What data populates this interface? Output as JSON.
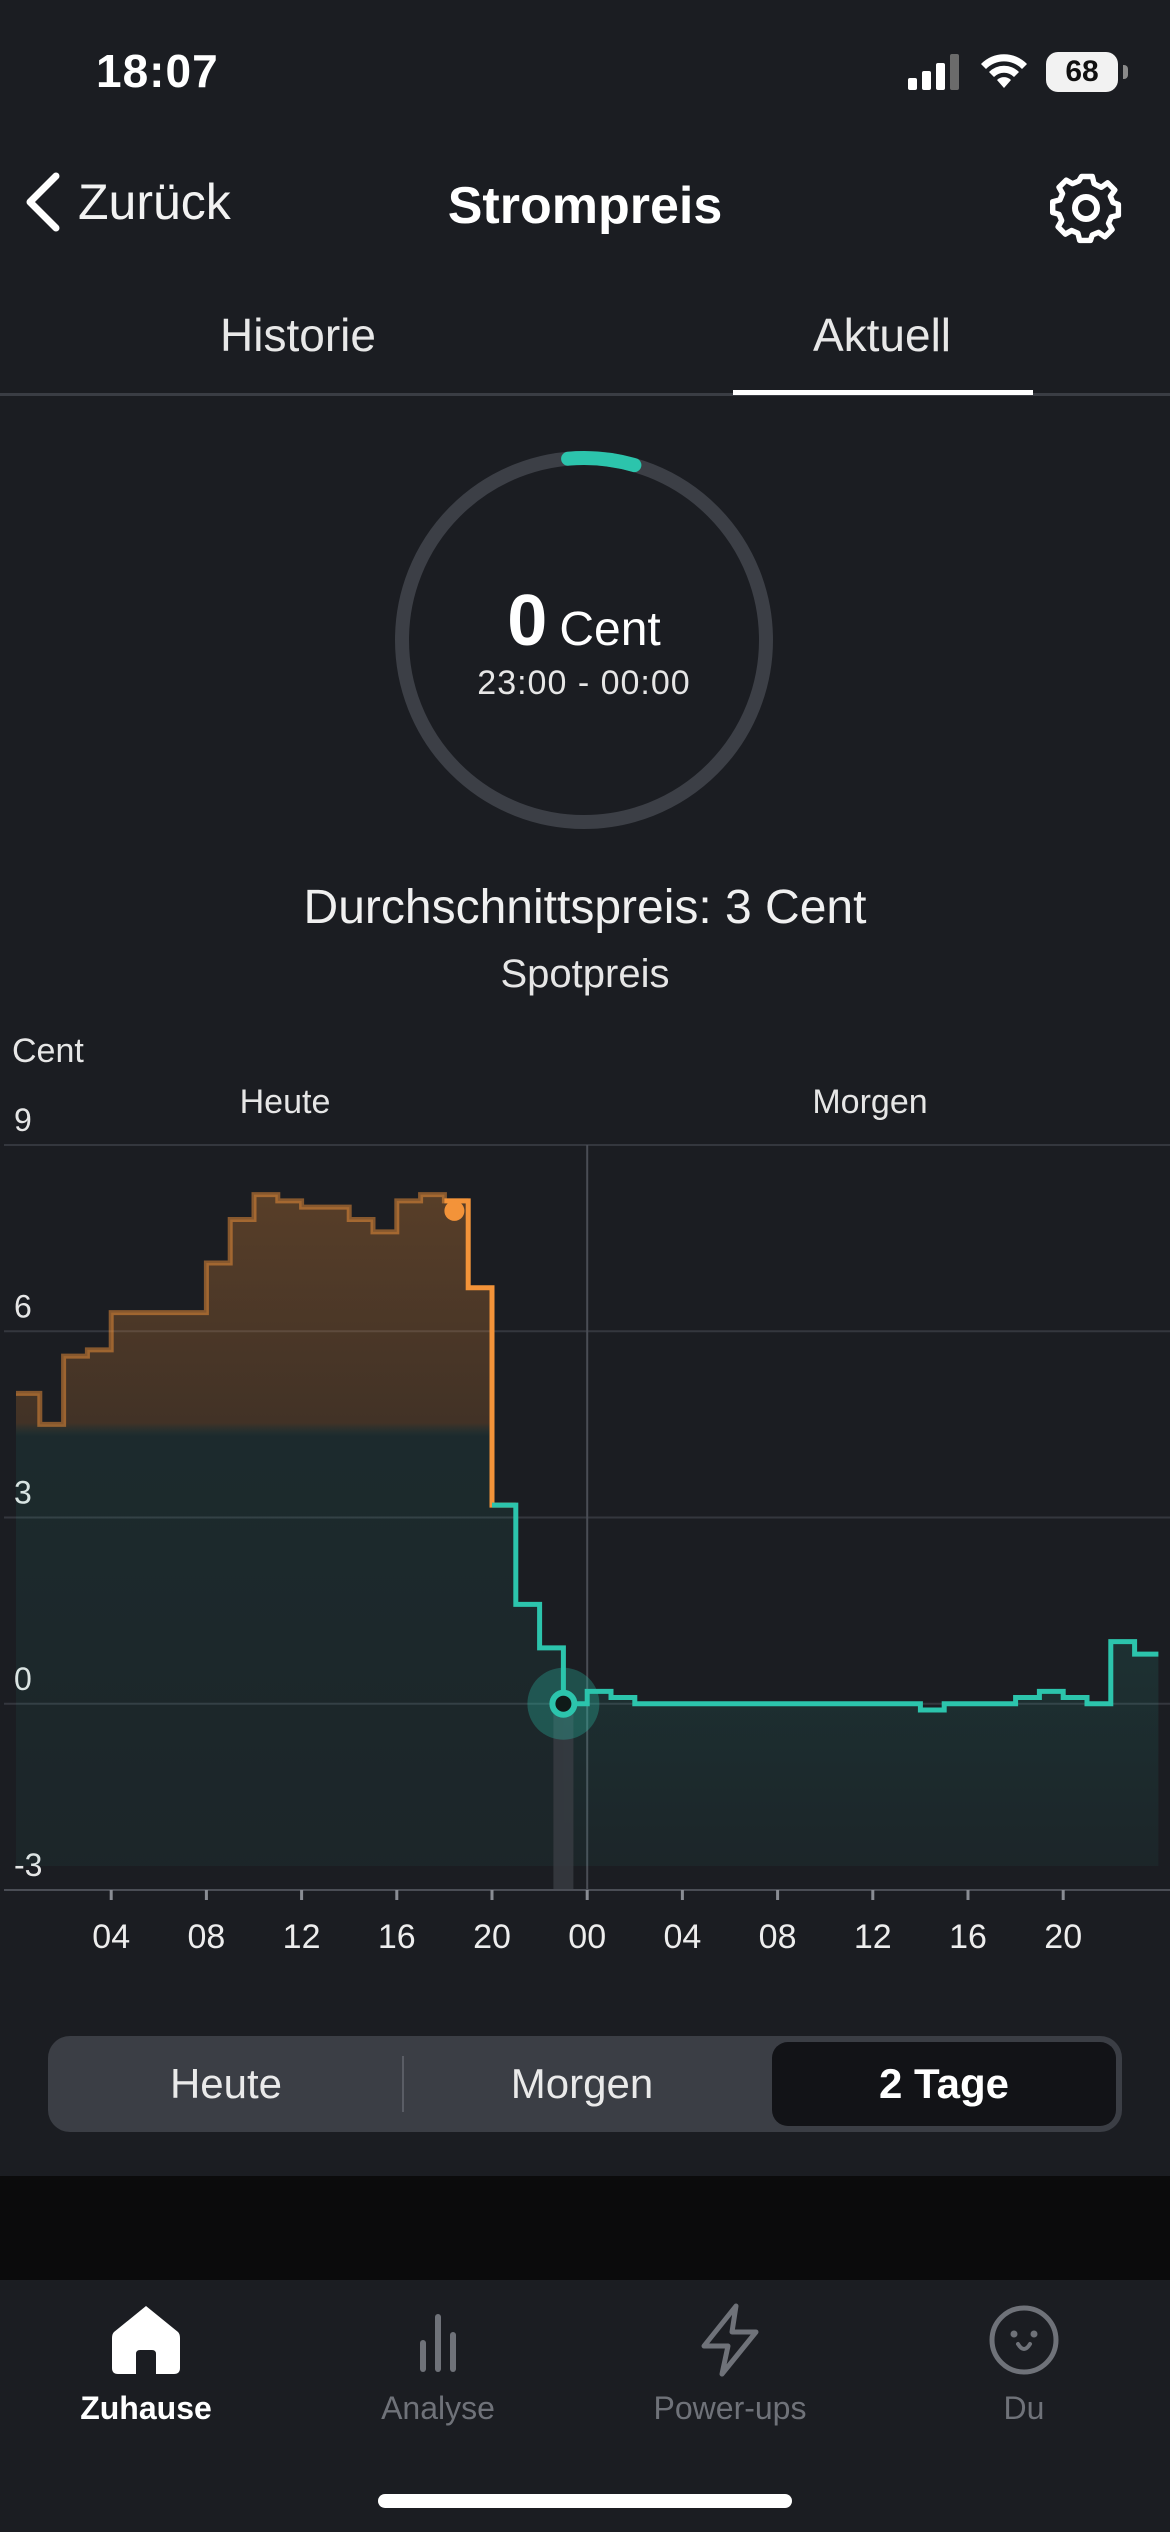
{
  "status_bar": {
    "time": "18:07",
    "battery": "68"
  },
  "nav": {
    "back_label": "Zurück",
    "title": "Strompreis"
  },
  "tabs": [
    {
      "label": "Historie"
    },
    {
      "label": "Aktuell",
      "active": true
    }
  ],
  "current": {
    "value": "0",
    "unit": "Cent",
    "range": "23:00 - 00:00"
  },
  "summary": {
    "average": "Durchschnittspreis: 3 Cent",
    "type": "Spotpreis"
  },
  "chart_data": {
    "type": "line",
    "ylabel": "Cent",
    "ylim": [
      -3,
      9
    ],
    "yticks": [
      9,
      6,
      3,
      0,
      -3
    ],
    "xticks": [
      "04",
      "08",
      "12",
      "16",
      "20",
      "00",
      "04",
      "08",
      "12",
      "16",
      "20"
    ],
    "groups": [
      "Heute",
      "Morgen"
    ],
    "grid": true,
    "current_index": 23,
    "past_color": "#f39339",
    "future_color": "#2cc4ac",
    "hours": [
      "00",
      "01",
      "02",
      "03",
      "04",
      "05",
      "06",
      "07",
      "08",
      "09",
      "10",
      "11",
      "12",
      "13",
      "14",
      "15",
      "16",
      "17",
      "18",
      "19",
      "20",
      "21",
      "22",
      "23",
      "00",
      "01",
      "02",
      "03",
      "04",
      "05",
      "06",
      "07",
      "08",
      "09",
      "10",
      "11",
      "12",
      "13",
      "14",
      "15",
      "16",
      "17",
      "18",
      "19",
      "20",
      "21",
      "22",
      "23"
    ],
    "values": [
      5.0,
      4.5,
      5.6,
      5.7,
      6.3,
      6.3,
      6.3,
      6.3,
      7.1,
      7.8,
      8.2,
      8.1,
      8.0,
      8.0,
      7.8,
      7.6,
      8.1,
      8.2,
      8.1,
      6.7,
      3.2,
      1.6,
      0.9,
      0.0,
      0.2,
      0.1,
      0.0,
      0.0,
      0.0,
      0.0,
      0.0,
      0.0,
      0.0,
      0.0,
      0.0,
      0.0,
      0.0,
      0.0,
      -0.1,
      0.0,
      0.0,
      0.0,
      0.1,
      0.2,
      0.1,
      0.0,
      1.0,
      0.8
    ]
  },
  "segment": {
    "options": [
      "Heute",
      "Morgen",
      "2 Tage"
    ],
    "selected": "2 Tage"
  },
  "bottom_nav": [
    {
      "label": "Zuhause",
      "icon": "home-icon",
      "active": true
    },
    {
      "label": "Analyse",
      "icon": "bar-chart-icon"
    },
    {
      "label": "Power-ups",
      "icon": "lightning-icon"
    },
    {
      "label": "Du",
      "icon": "face-icon"
    }
  ],
  "colors": {
    "accent": "#2cc4ac",
    "past": "#f39339",
    "background": "#1b1d22"
  }
}
